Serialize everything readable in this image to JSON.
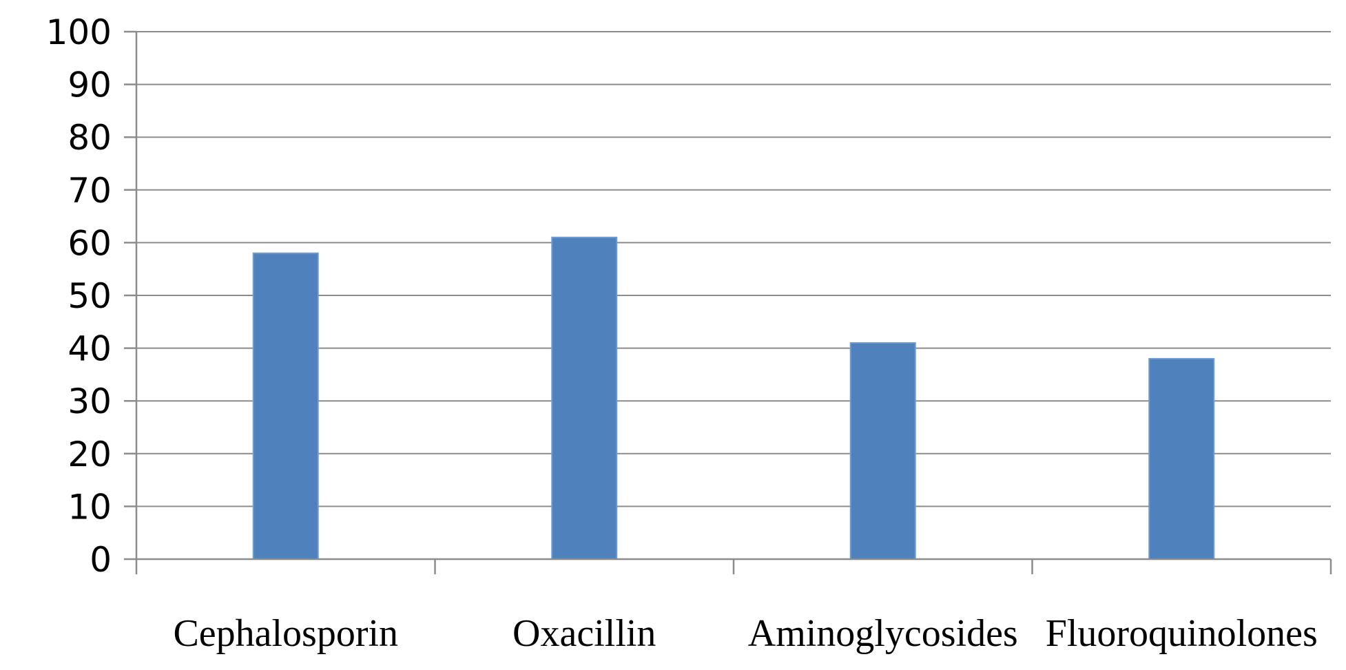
{
  "chart_data": {
    "type": "bar",
    "title": "",
    "xlabel": "",
    "ylabel": "",
    "categories": [
      "Cephalosporin",
      "Oxacillin",
      "Aminoglycosides",
      "Fluoroquinolones"
    ],
    "values": [
      58,
      61,
      41,
      38
    ],
    "ylim": [
      0,
      100
    ],
    "yticks": [
      "0",
      "10",
      "20",
      "30",
      "40",
      "50",
      "60",
      "70",
      "80",
      "90",
      "100"
    ],
    "grid": true,
    "legend": "none",
    "bar_color": "#4f81bd",
    "gridline_color": "#8c8c8c"
  }
}
